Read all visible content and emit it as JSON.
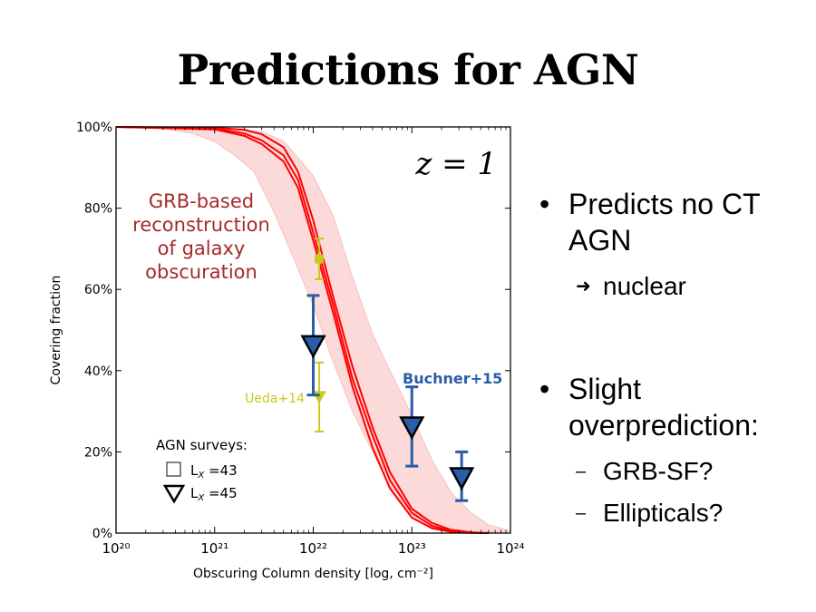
{
  "slide": {
    "title": "Predictions for AGN"
  },
  "bullets": [
    {
      "text": "Predicts no CT AGN",
      "sub": [
        {
          "marker": "➜",
          "text": "nuclear"
        }
      ]
    },
    {
      "text": "Slight overprediction:",
      "sub": [
        {
          "marker": "–",
          "text": "GRB-SF?"
        },
        {
          "marker": "–",
          "text": "Ellipticals?"
        }
      ]
    }
  ],
  "chart_data": {
    "type": "line",
    "xlabel": "Obscuring Column density [log, cm⁻²]",
    "ylabel": "Covering fraction",
    "x_scale": "log",
    "xlim": [
      1e+20,
      1e+24
    ],
    "ylim": [
      0,
      100
    ],
    "x_ticks": [
      "10²⁰",
      "10²¹",
      "10²²",
      "10²³",
      "10²⁴"
    ],
    "y_ticks": [
      "0%",
      "20%",
      "40%",
      "60%",
      "80%",
      "100%"
    ],
    "panel_label": "z = 1",
    "annotation": "GRB-based reconstruction of galaxy obscuration",
    "band": {
      "color": "#fcd4d4",
      "upper": [
        [
          1e+20,
          100
        ],
        [
          1e+21,
          100
        ],
        [
          3e+21,
          98.8
        ],
        [
          5e+21,
          96.6
        ],
        [
          1e+22,
          88
        ],
        [
          1.6e+22,
          78
        ],
        [
          2.5e+22,
          63
        ],
        [
          4e+22,
          49
        ],
        [
          6e+22,
          40
        ],
        [
          1e+23,
          29
        ],
        [
          1.6e+23,
          18
        ],
        [
          2.5e+23,
          10
        ],
        [
          4e+23,
          5
        ],
        [
          6e+23,
          2
        ],
        [
          1e+24,
          0.5
        ]
      ],
      "lower": [
        [
          1e+20,
          100
        ],
        [
          3e+20,
          99.6
        ],
        [
          6e+20,
          98.4
        ],
        [
          1e+21,
          96.4
        ],
        [
          1.6e+21,
          93
        ],
        [
          2.5e+21,
          89
        ],
        [
          4e+21,
          79
        ],
        [
          6e+21,
          69
        ],
        [
          1e+22,
          56
        ],
        [
          1.6e+22,
          42
        ],
        [
          2.5e+22,
          30
        ],
        [
          4e+22,
          20
        ],
        [
          6e+22,
          11.5
        ],
        [
          1e+23,
          4
        ],
        [
          1.6e+23,
          1.5
        ],
        [
          2.5e+23,
          0.3
        ],
        [
          4e+23,
          0
        ]
      ]
    },
    "series": [
      {
        "color": "#ff0000",
        "points": [
          [
            1e+20,
            100
          ],
          [
            1e+21,
            99.8
          ],
          [
            2e+21,
            99.3
          ],
          [
            3e+21,
            98.2
          ],
          [
            5e+21,
            95
          ],
          [
            7e+21,
            89
          ],
          [
            1e+22,
            77
          ],
          [
            1.6e+22,
            58
          ],
          [
            2.5e+22,
            41
          ],
          [
            4e+22,
            26
          ],
          [
            6e+22,
            15
          ],
          [
            1e+23,
            6
          ],
          [
            1.6e+23,
            2.5
          ],
          [
            2.5e+23,
            0.8
          ],
          [
            4e+23,
            0.2
          ],
          [
            6e+23,
            0
          ]
        ]
      },
      {
        "color": "#ff0000",
        "points": [
          [
            1e+20,
            100
          ],
          [
            1e+21,
            99.6
          ],
          [
            2e+21,
            98.4
          ],
          [
            3e+21,
            96.7
          ],
          [
            5e+21,
            93
          ],
          [
            7e+21,
            87
          ],
          [
            1e+22,
            74
          ],
          [
            1.6e+22,
            56
          ],
          [
            2.5e+22,
            38
          ],
          [
            4e+22,
            24
          ],
          [
            6e+22,
            13
          ],
          [
            1e+23,
            5
          ],
          [
            1.6e+23,
            1.8
          ],
          [
            2.5e+23,
            0.5
          ],
          [
            4e+23,
            0.1
          ],
          [
            6e+23,
            0
          ]
        ]
      },
      {
        "color": "#ff0000",
        "points": [
          [
            1e+20,
            100
          ],
          [
            1e+21,
            99.4
          ],
          [
            2e+21,
            97.8
          ],
          [
            3e+21,
            95.8
          ],
          [
            5e+21,
            91.5
          ],
          [
            7e+21,
            85
          ],
          [
            1e+22,
            72
          ],
          [
            1.6e+22,
            54
          ],
          [
            2.5e+22,
            36
          ],
          [
            4e+22,
            21
          ],
          [
            6e+22,
            11
          ],
          [
            1e+23,
            3.8
          ],
          [
            1.6e+23,
            1.2
          ],
          [
            2.5e+23,
            0.3
          ],
          [
            4e+23,
            0.05
          ],
          [
            6e+23,
            0
          ]
        ]
      }
    ],
    "datasets": [
      {
        "name": "Ueda+14",
        "color": "#c8c81e",
        "points": [
          {
            "x": 1.15e+22,
            "y": 67.5,
            "low": 62.5,
            "high": 72.5,
            "marker": "square"
          },
          {
            "x": 1.15e+22,
            "y": 33.5,
            "low": 25,
            "high": 42,
            "marker": "triangle"
          }
        ]
      },
      {
        "name": "Buchner+15",
        "color": "#2a5ca8",
        "points": [
          {
            "x": 1e+22,
            "y": 46,
            "low": 34,
            "high": 58.5,
            "marker": "triangle"
          },
          {
            "x": 1e+23,
            "y": 26,
            "low": 16.5,
            "high": 36,
            "marker": "triangle"
          },
          {
            "x": 3.2e+23,
            "y": 13.5,
            "low": 8,
            "high": 20,
            "marker": "triangle"
          }
        ]
      }
    ],
    "legend": {
      "title": "AGN surveys:",
      "entries": [
        {
          "label": "L_X =43",
          "marker": "square"
        },
        {
          "label": "L_X =45",
          "marker": "triangle"
        }
      ]
    }
  }
}
